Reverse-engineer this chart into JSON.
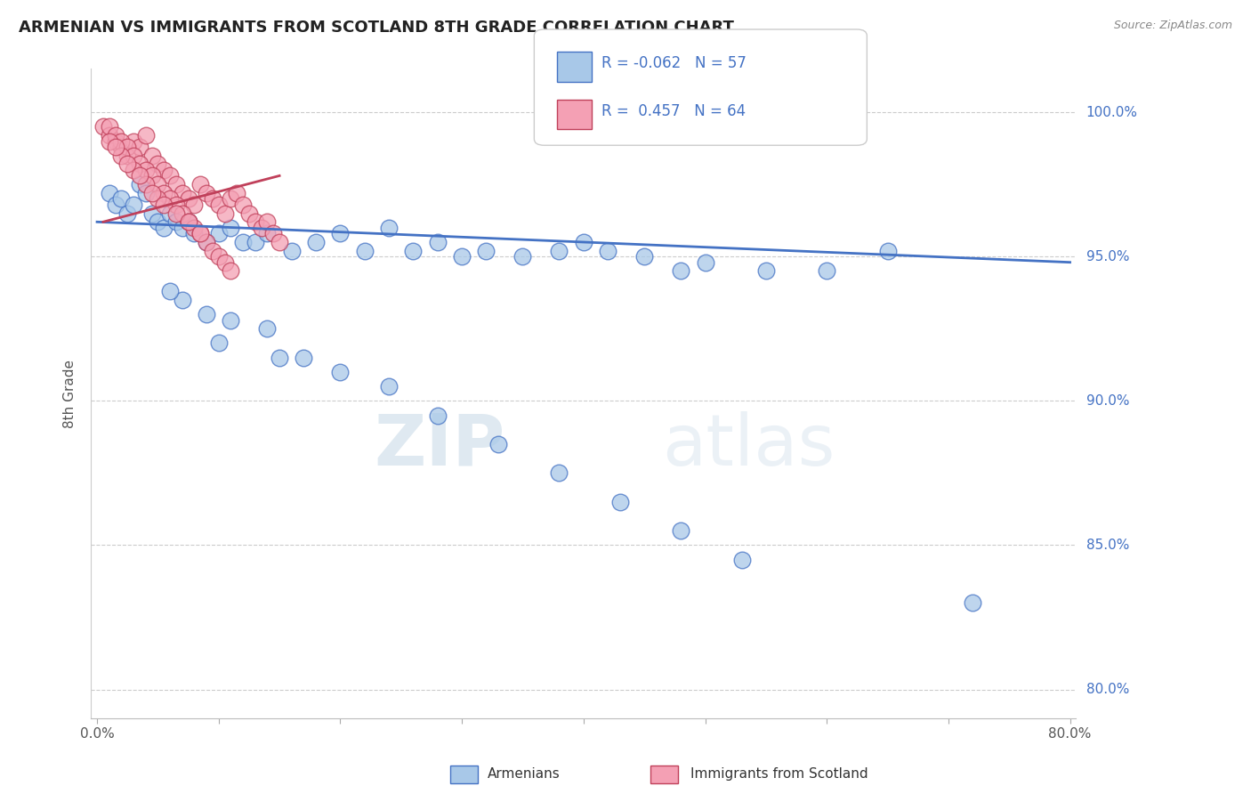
{
  "title": "ARMENIAN VS IMMIGRANTS FROM SCOTLAND 8TH GRADE CORRELATION CHART",
  "source": "Source: ZipAtlas.com",
  "ylabel": "8th Grade",
  "legend_label_blue": "Armenians",
  "legend_label_pink": "Immigrants from Scotland",
  "R_blue": -0.062,
  "N_blue": 57,
  "R_pink": 0.457,
  "N_pink": 64,
  "xlim": [
    -0.5,
    80.5
  ],
  "ylim": [
    79.0,
    101.5
  ],
  "yticks": [
    80.0,
    85.0,
    90.0,
    95.0,
    100.0
  ],
  "ytick_labels": [
    "80.0%",
    "85.0%",
    "90.0%",
    "95.0%",
    "100.0%"
  ],
  "xtick_positions": [
    0,
    10,
    20,
    30,
    40,
    50,
    60,
    70,
    80
  ],
  "xtick_labels": [
    "0.0%",
    "",
    "",
    "",
    "",
    "",
    "",
    "",
    "80.0%"
  ],
  "color_blue": "#a8c8e8",
  "color_pink": "#f4a0b4",
  "trend_blue": "#4472c4",
  "trend_pink": "#c0405a",
  "background_color": "#ffffff",
  "grid_color": "#cccccc",
  "title_color": "#222222",
  "watermark": "ZIPatlas",
  "blue_x": [
    1.0,
    1.5,
    2.0,
    2.5,
    3.0,
    3.5,
    4.0,
    4.5,
    5.0,
    5.5,
    6.0,
    6.5,
    7.0,
    7.5,
    8.0,
    9.0,
    10.0,
    11.0,
    12.0,
    13.0,
    14.0,
    16.0,
    18.0,
    20.0,
    22.0,
    24.0,
    26.0,
    28.0,
    30.0,
    32.0,
    35.0,
    38.0,
    40.0,
    42.0,
    45.0,
    48.0,
    50.0,
    55.0,
    60.0,
    65.0,
    7.0,
    9.0,
    11.0,
    14.0,
    17.0,
    20.0,
    24.0,
    28.0,
    33.0,
    38.0,
    43.0,
    48.0,
    53.0,
    6.0,
    10.0,
    15.0,
    72.0
  ],
  "blue_y": [
    97.2,
    96.8,
    97.0,
    96.5,
    96.8,
    97.5,
    97.2,
    96.5,
    96.2,
    96.0,
    96.5,
    96.2,
    96.0,
    96.2,
    95.8,
    95.5,
    95.8,
    96.0,
    95.5,
    95.5,
    95.8,
    95.2,
    95.5,
    95.8,
    95.2,
    96.0,
    95.2,
    95.5,
    95.0,
    95.2,
    95.0,
    95.2,
    95.5,
    95.2,
    95.0,
    94.5,
    94.8,
    94.5,
    94.5,
    95.2,
    93.5,
    93.0,
    92.8,
    92.5,
    91.5,
    91.0,
    90.5,
    89.5,
    88.5,
    87.5,
    86.5,
    85.5,
    84.5,
    93.8,
    92.0,
    91.5,
    83.0
  ],
  "pink_x": [
    0.5,
    1.0,
    1.5,
    2.0,
    2.5,
    3.0,
    3.5,
    4.0,
    4.5,
    5.0,
    5.5,
    6.0,
    6.5,
    7.0,
    7.5,
    8.0,
    8.5,
    9.0,
    9.5,
    10.0,
    10.5,
    11.0,
    11.5,
    12.0,
    12.5,
    13.0,
    13.5,
    14.0,
    14.5,
    15.0,
    1.0,
    1.5,
    2.0,
    2.5,
    3.0,
    3.5,
    4.0,
    4.5,
    5.0,
    5.5,
    6.0,
    6.5,
    7.0,
    7.5,
    8.0,
    8.5,
    9.0,
    9.5,
    10.0,
    10.5,
    11.0,
    1.0,
    2.0,
    3.0,
    4.0,
    5.0,
    1.5,
    2.5,
    3.5,
    4.5,
    5.5,
    6.5,
    7.5,
    8.5
  ],
  "pink_y": [
    99.5,
    99.2,
    99.0,
    98.8,
    98.5,
    99.0,
    98.8,
    99.2,
    98.5,
    98.2,
    98.0,
    97.8,
    97.5,
    97.2,
    97.0,
    96.8,
    97.5,
    97.2,
    97.0,
    96.8,
    96.5,
    97.0,
    97.2,
    96.8,
    96.5,
    96.2,
    96.0,
    96.2,
    95.8,
    95.5,
    99.5,
    99.2,
    99.0,
    98.8,
    98.5,
    98.2,
    98.0,
    97.8,
    97.5,
    97.2,
    97.0,
    96.8,
    96.5,
    96.2,
    96.0,
    95.8,
    95.5,
    95.2,
    95.0,
    94.8,
    94.5,
    99.0,
    98.5,
    98.0,
    97.5,
    97.0,
    98.8,
    98.2,
    97.8,
    97.2,
    96.8,
    96.5,
    96.2,
    95.8
  ],
  "trend_blue_x0": 0.0,
  "trend_blue_y0": 96.2,
  "trend_blue_x1": 80.0,
  "trend_blue_y1": 94.8,
  "trend_pink_x0": 0.5,
  "trend_pink_y0": 96.2,
  "trend_pink_x1": 15.0,
  "trend_pink_y1": 97.8
}
